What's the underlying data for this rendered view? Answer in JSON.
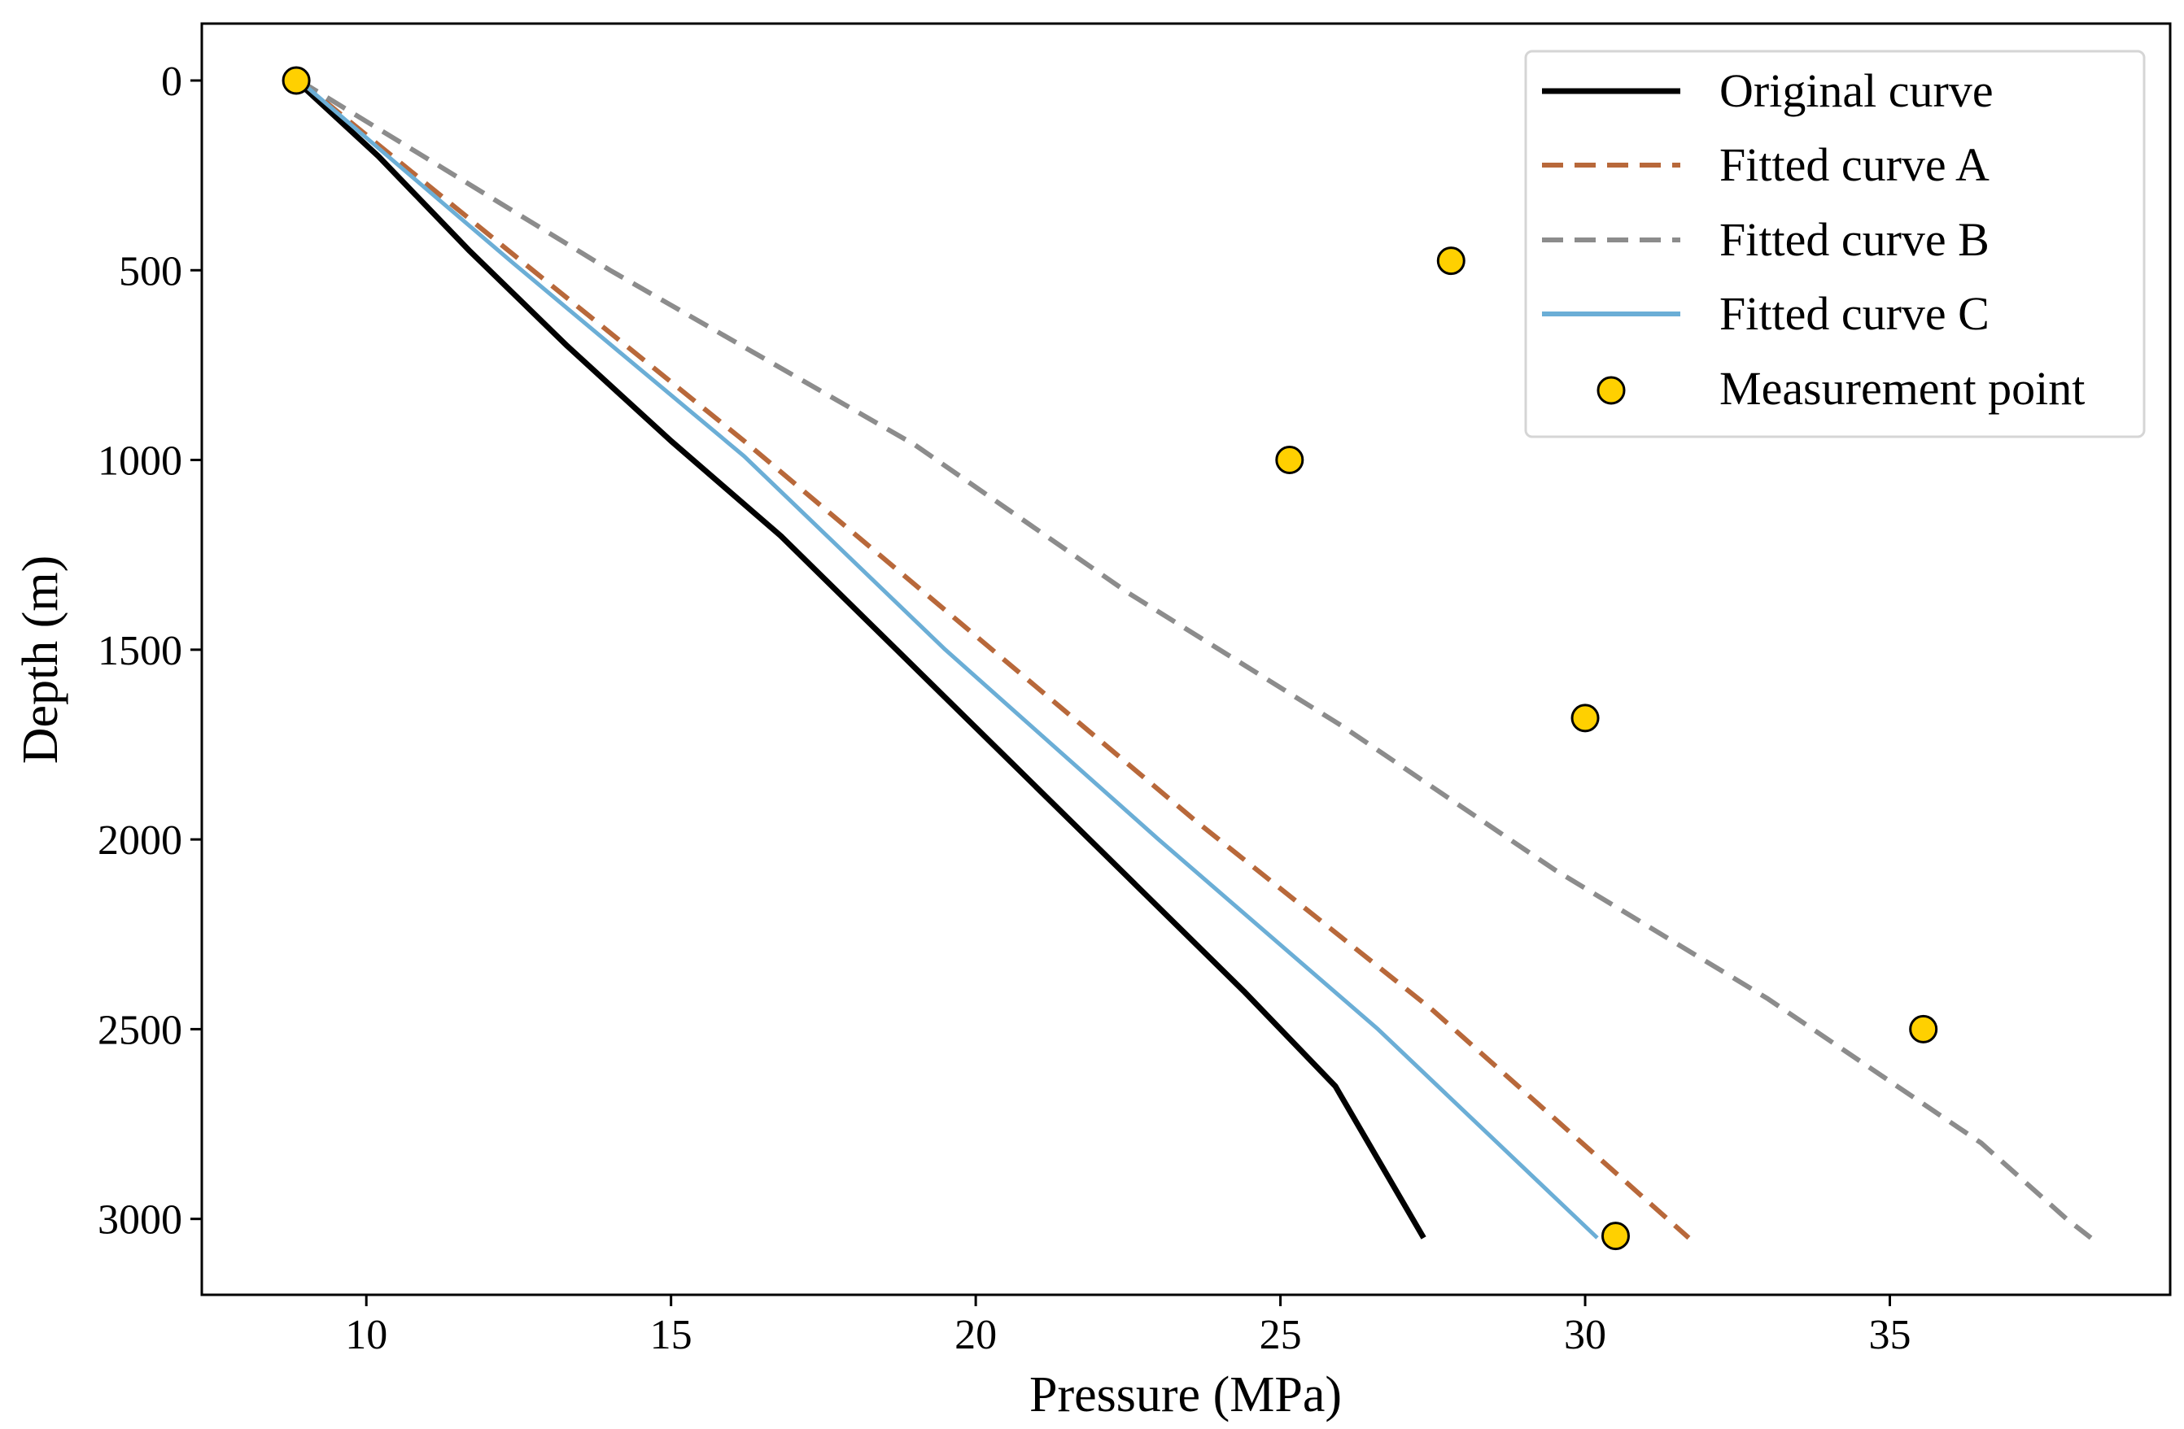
{
  "chart_data": {
    "type": "line",
    "title": "",
    "xlabel": "Pressure (MPa)",
    "ylabel": "Depth (m)",
    "xlim": [
      7.3,
      39.6
    ],
    "ylim": [
      -150,
      3200
    ],
    "y_inverted": true,
    "grid": false,
    "legend_position": "top-right",
    "xticks": [
      10,
      15,
      20,
      25,
      30,
      35
    ],
    "yticks": [
      0,
      500,
      1000,
      1500,
      2000,
      2500,
      3000
    ],
    "series": [
      {
        "name": "Original curve",
        "style": "solid",
        "color": "#000000",
        "points": [
          [
            8.85,
            0
          ],
          [
            10.2,
            200
          ],
          [
            11.7,
            450
          ],
          [
            13.3,
            700
          ],
          [
            15.0,
            950
          ],
          [
            16.8,
            1200
          ],
          [
            18.7,
            1500
          ],
          [
            20.6,
            1800
          ],
          [
            22.5,
            2100
          ],
          [
            24.4,
            2400
          ],
          [
            25.9,
            2650
          ],
          [
            27.35,
            3050
          ]
        ]
      },
      {
        "name": "Fitted curve A",
        "style": "dashed",
        "color": "#b8683a",
        "points": [
          [
            8.9,
            0
          ],
          [
            12.5,
            470
          ],
          [
            16.2,
            950
          ],
          [
            19.9,
            1450
          ],
          [
            23.6,
            1950
          ],
          [
            27.5,
            2450
          ],
          [
            31.7,
            3050
          ]
        ]
      },
      {
        "name": "Fitted curve B",
        "style": "dashed",
        "color": "#8c8c8c",
        "points": [
          [
            8.9,
            0
          ],
          [
            14.0,
            500
          ],
          [
            19.0,
            960
          ],
          [
            22.5,
            1350
          ],
          [
            26.0,
            1700
          ],
          [
            29.5,
            2080
          ],
          [
            33.0,
            2420
          ],
          [
            36.5,
            2800
          ],
          [
            37.9,
            3000
          ],
          [
            38.3,
            3050
          ]
        ]
      },
      {
        "name": "Fitted curve C",
        "style": "solid",
        "color": "#6baed6",
        "points": [
          [
            8.9,
            0
          ],
          [
            12.4,
            480
          ],
          [
            16.2,
            990
          ],
          [
            19.5,
            1500
          ],
          [
            23.0,
            2000
          ],
          [
            26.6,
            2500
          ],
          [
            30.2,
            3050
          ]
        ]
      }
    ],
    "measurement_points": {
      "name": "Measurement point",
      "color": "#ffd000",
      "points": [
        [
          8.85,
          0
        ],
        [
          27.8,
          475
        ],
        [
          25.15,
          1000
        ],
        [
          30.0,
          1680
        ],
        [
          35.55,
          2500
        ],
        [
          30.5,
          3045
        ]
      ]
    }
  }
}
